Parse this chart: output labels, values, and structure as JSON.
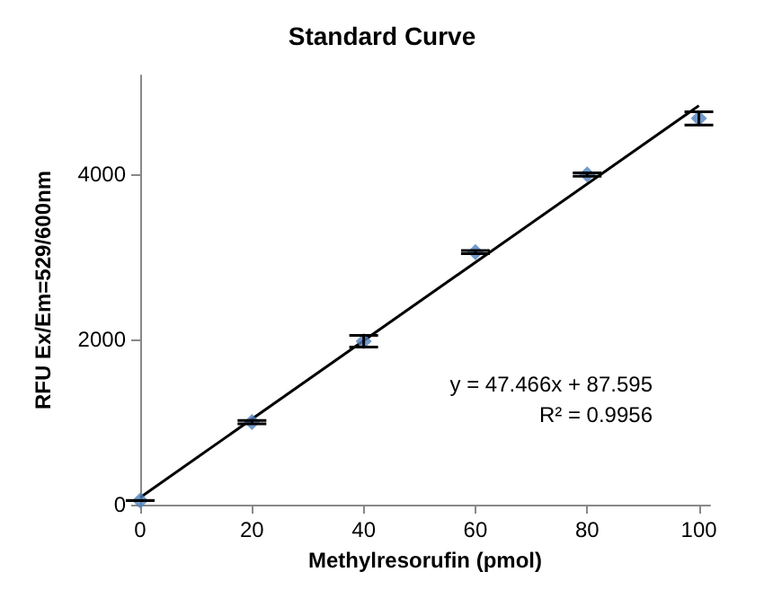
{
  "chart_data": {
    "type": "scatter",
    "title": "Standard Curve",
    "xlabel": "Methylresorufin (pmol)",
    "ylabel": "RFU Ex/Em=529/600nm",
    "x": [
      0,
      20,
      40,
      60,
      80,
      100
    ],
    "series": [
      {
        "color": "#4f81bd",
        "values": [
          50,
          1000,
          1980,
          3060,
          4000,
          4680
        ],
        "errors": [
          null,
          20,
          70,
          20,
          20,
          80
        ],
        "marker": "diamond"
      },
      {
        "type": "line",
        "color": "#000000",
        "x": [
          0,
          100
        ],
        "values": [
          88,
          4834
        ],
        "marker": "none"
      }
    ],
    "annotations": [
      "y = 47.466x + 87.595",
      "R² = 0.9956"
    ],
    "xlim": [
      0,
      102
    ],
    "xticks": [
      0,
      20,
      40,
      60,
      80,
      100
    ],
    "ylim": [
      0,
      5200
    ],
    "yticks": [
      0,
      2000,
      4000
    ],
    "grid": false
  }
}
